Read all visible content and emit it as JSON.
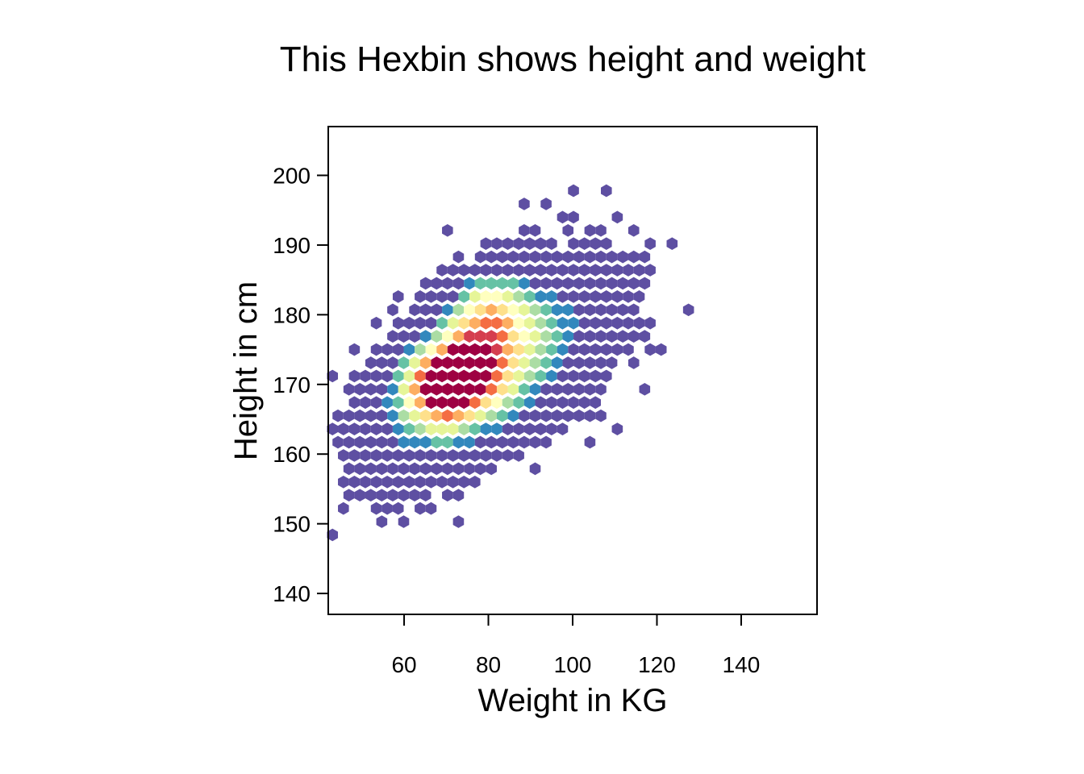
{
  "chart_data": {
    "type": "hexbin",
    "title": "This Hexbin shows height and weight",
    "xlabel": "Weight in KG",
    "ylabel": "Height in cm",
    "xlim": [
      42,
      158
    ],
    "ylim": [
      137,
      207
    ],
    "xticks": [
      60,
      80,
      100,
      120,
      140
    ],
    "yticks": [
      140,
      150,
      160,
      170,
      180,
      190,
      200
    ],
    "grid": false,
    "legend": "none",
    "palette": [
      "#5E4FA2",
      "#3288BD",
      "#66C2A5",
      "#ABDDA4",
      "#E6F598",
      "#FFFFBF",
      "#FEE08B",
      "#FDAE61",
      "#F46D43",
      "#D53E4F",
      "#9E0142"
    ],
    "density": {
      "core_centers": [
        {
          "x": 68,
          "y": 169.5,
          "weight": 1.0
        },
        {
          "x": 80,
          "y": 181,
          "weight": 0.85
        },
        {
          "x": 75,
          "y": 172.5,
          "weight": 0.9
        }
      ],
      "x_range": [
        43,
        157
      ],
      "y_range": [
        137,
        207
      ]
    }
  }
}
